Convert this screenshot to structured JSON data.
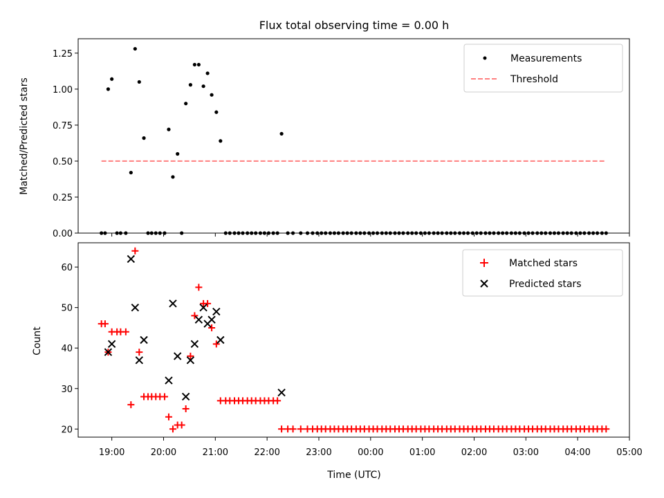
{
  "chart_data": [
    {
      "type": "scatter",
      "title": "Flux total observing time = 0.00 h",
      "xlabel": "",
      "ylabel": "Matched/Predicted stars",
      "xlim_hours": [
        18.35,
        29.0
      ],
      "ylim": [
        0,
        1.35
      ],
      "yticks": [
        0.0,
        0.25,
        0.5,
        0.75,
        1.0,
        1.25
      ],
      "ytick_labels": [
        "0.00",
        "0.25",
        "0.50",
        "0.75",
        "1.00",
        "1.25"
      ],
      "legend_position": "top-right",
      "series": [
        {
          "name": "Measurements",
          "kind": "dot",
          "color": "#000000",
          "points": [
            [
              18.8,
              0
            ],
            [
              18.87,
              0
            ],
            [
              18.93,
              1.0
            ],
            [
              19.0,
              1.07
            ],
            [
              19.1,
              0
            ],
            [
              19.17,
              0
            ],
            [
              19.27,
              0
            ],
            [
              19.37,
              0.42
            ],
            [
              19.45,
              1.28
            ],
            [
              19.53,
              1.05
            ],
            [
              19.62,
              0.66
            ],
            [
              19.7,
              0
            ],
            [
              19.77,
              0
            ],
            [
              19.85,
              0
            ],
            [
              19.93,
              0
            ],
            [
              20.02,
              0
            ],
            [
              20.1,
              0.72
            ],
            [
              20.18,
              0.39
            ],
            [
              20.27,
              0.55
            ],
            [
              20.35,
              0
            ],
            [
              20.43,
              0.9
            ],
            [
              20.52,
              1.03
            ],
            [
              20.6,
              1.17
            ],
            [
              20.68,
              1.17
            ],
            [
              20.77,
              1.02
            ],
            [
              20.85,
              1.11
            ],
            [
              20.93,
              0.96
            ],
            [
              21.02,
              0.84
            ],
            [
              21.1,
              0.64
            ],
            [
              21.2,
              0
            ],
            [
              21.28,
              0
            ],
            [
              21.37,
              0
            ],
            [
              21.45,
              0
            ],
            [
              21.53,
              0
            ],
            [
              21.62,
              0
            ],
            [
              21.7,
              0
            ],
            [
              21.78,
              0
            ],
            [
              21.87,
              0
            ],
            [
              21.95,
              0
            ],
            [
              22.03,
              0
            ],
            [
              22.12,
              0
            ],
            [
              22.2,
              0
            ],
            [
              22.28,
              0.69
            ],
            [
              22.4,
              0
            ],
            [
              22.5,
              0
            ],
            [
              22.65,
              0
            ],
            [
              22.78,
              0
            ],
            [
              22.88,
              0
            ],
            [
              22.97,
              0
            ],
            [
              23.05,
              0
            ],
            [
              23.13,
              0
            ],
            [
              23.22,
              0
            ],
            [
              23.3,
              0
            ],
            [
              23.38,
              0
            ],
            [
              23.47,
              0
            ],
            [
              23.55,
              0
            ],
            [
              23.63,
              0
            ],
            [
              23.72,
              0
            ],
            [
              23.8,
              0
            ],
            [
              23.88,
              0
            ],
            [
              23.97,
              0
            ],
            [
              24.05,
              0
            ],
            [
              24.13,
              0
            ],
            [
              24.22,
              0
            ],
            [
              24.3,
              0
            ],
            [
              24.38,
              0
            ],
            [
              24.47,
              0
            ],
            [
              24.55,
              0
            ],
            [
              24.63,
              0
            ],
            [
              24.72,
              0
            ],
            [
              24.8,
              0
            ],
            [
              24.88,
              0
            ],
            [
              24.97,
              0
            ],
            [
              25.05,
              0
            ],
            [
              25.13,
              0
            ],
            [
              25.22,
              0
            ],
            [
              25.3,
              0
            ],
            [
              25.38,
              0
            ],
            [
              25.47,
              0
            ],
            [
              25.55,
              0
            ],
            [
              25.63,
              0
            ],
            [
              25.72,
              0
            ],
            [
              25.8,
              0
            ],
            [
              25.88,
              0
            ],
            [
              25.97,
              0
            ],
            [
              26.05,
              0
            ],
            [
              26.13,
              0
            ],
            [
              26.22,
              0
            ],
            [
              26.3,
              0
            ],
            [
              26.38,
              0
            ],
            [
              26.47,
              0
            ],
            [
              26.55,
              0
            ],
            [
              26.63,
              0
            ],
            [
              26.72,
              0
            ],
            [
              26.8,
              0
            ],
            [
              26.88,
              0
            ],
            [
              26.97,
              0
            ],
            [
              27.05,
              0
            ],
            [
              27.13,
              0
            ],
            [
              27.22,
              0
            ],
            [
              27.3,
              0
            ],
            [
              27.38,
              0
            ],
            [
              27.47,
              0
            ],
            [
              27.55,
              0
            ],
            [
              27.63,
              0
            ],
            [
              27.72,
              0
            ],
            [
              27.8,
              0
            ],
            [
              27.88,
              0
            ],
            [
              27.97,
              0
            ],
            [
              28.05,
              0
            ],
            [
              28.13,
              0
            ],
            [
              28.22,
              0
            ],
            [
              28.3,
              0
            ],
            [
              28.38,
              0
            ],
            [
              28.47,
              0
            ],
            [
              28.55,
              0
            ]
          ]
        },
        {
          "name": "Threshold",
          "kind": "dashed-line",
          "color": "#ff7f7f",
          "points": [
            [
              18.8,
              0.5
            ],
            [
              28.55,
              0.5
            ]
          ]
        }
      ]
    },
    {
      "type": "scatter",
      "title": "",
      "xlabel": "Time (UTC)",
      "ylabel": "Count",
      "xlim_hours": [
        18.35,
        29.0
      ],
      "ylim": [
        18,
        66
      ],
      "yticks": [
        20,
        30,
        40,
        50,
        60
      ],
      "ytick_labels": [
        "20",
        "30",
        "40",
        "50",
        "60"
      ],
      "xticks_hours": [
        19,
        20,
        21,
        22,
        23,
        24,
        25,
        26,
        27,
        28,
        29
      ],
      "xtick_labels": [
        "19:00",
        "20:00",
        "21:00",
        "22:00",
        "23:00",
        "00:00",
        "01:00",
        "02:00",
        "03:00",
        "04:00",
        "05:00"
      ],
      "legend_position": "top-right",
      "series": [
        {
          "name": "Matched stars",
          "kind": "plus",
          "color": "#ff0000",
          "points": [
            [
              18.8,
              46
            ],
            [
              18.87,
              46
            ],
            [
              18.93,
              39
            ],
            [
              19.0,
              44
            ],
            [
              19.1,
              44
            ],
            [
              19.17,
              44
            ],
            [
              19.27,
              44
            ],
            [
              19.37,
              26
            ],
            [
              19.45,
              64
            ],
            [
              19.53,
              39
            ],
            [
              19.62,
              28
            ],
            [
              19.7,
              28
            ],
            [
              19.77,
              28
            ],
            [
              19.85,
              28
            ],
            [
              19.93,
              28
            ],
            [
              20.02,
              28
            ],
            [
              20.1,
              23
            ],
            [
              20.18,
              20
            ],
            [
              20.27,
              21
            ],
            [
              20.35,
              21
            ],
            [
              20.43,
              25
            ],
            [
              20.52,
              38
            ],
            [
              20.6,
              48
            ],
            [
              20.68,
              55
            ],
            [
              20.77,
              51
            ],
            [
              20.85,
              51
            ],
            [
              20.93,
              45
            ],
            [
              21.02,
              41
            ],
            [
              21.1,
              27
            ],
            [
              21.2,
              27
            ],
            [
              21.28,
              27
            ],
            [
              21.37,
              27
            ],
            [
              21.45,
              27
            ],
            [
              21.53,
              27
            ],
            [
              21.62,
              27
            ],
            [
              21.7,
              27
            ],
            [
              21.78,
              27
            ],
            [
              21.87,
              27
            ],
            [
              21.95,
              27
            ],
            [
              22.03,
              27
            ],
            [
              22.12,
              27
            ],
            [
              22.2,
              27
            ],
            [
              22.28,
              20
            ],
            [
              22.4,
              20
            ],
            [
              22.5,
              20
            ],
            [
              22.65,
              20
            ],
            [
              22.78,
              20
            ],
            [
              22.88,
              20
            ],
            [
              22.97,
              20
            ],
            [
              23.05,
              20
            ],
            [
              23.13,
              20
            ],
            [
              23.22,
              20
            ],
            [
              23.3,
              20
            ],
            [
              23.38,
              20
            ],
            [
              23.47,
              20
            ],
            [
              23.55,
              20
            ],
            [
              23.63,
              20
            ],
            [
              23.72,
              20
            ],
            [
              23.8,
              20
            ],
            [
              23.88,
              20
            ],
            [
              23.97,
              20
            ],
            [
              24.05,
              20
            ],
            [
              24.13,
              20
            ],
            [
              24.22,
              20
            ],
            [
              24.3,
              20
            ],
            [
              24.38,
              20
            ],
            [
              24.47,
              20
            ],
            [
              24.55,
              20
            ],
            [
              24.63,
              20
            ],
            [
              24.72,
              20
            ],
            [
              24.8,
              20
            ],
            [
              24.88,
              20
            ],
            [
              24.97,
              20
            ],
            [
              25.05,
              20
            ],
            [
              25.13,
              20
            ],
            [
              25.22,
              20
            ],
            [
              25.3,
              20
            ],
            [
              25.38,
              20
            ],
            [
              25.47,
              20
            ],
            [
              25.55,
              20
            ],
            [
              25.63,
              20
            ],
            [
              25.72,
              20
            ],
            [
              25.8,
              20
            ],
            [
              25.88,
              20
            ],
            [
              25.97,
              20
            ],
            [
              26.05,
              20
            ],
            [
              26.13,
              20
            ],
            [
              26.22,
              20
            ],
            [
              26.3,
              20
            ],
            [
              26.38,
              20
            ],
            [
              26.47,
              20
            ],
            [
              26.55,
              20
            ],
            [
              26.63,
              20
            ],
            [
              26.72,
              20
            ],
            [
              26.8,
              20
            ],
            [
              26.88,
              20
            ],
            [
              26.97,
              20
            ],
            [
              27.05,
              20
            ],
            [
              27.13,
              20
            ],
            [
              27.22,
              20
            ],
            [
              27.3,
              20
            ],
            [
              27.38,
              20
            ],
            [
              27.47,
              20
            ],
            [
              27.55,
              20
            ],
            [
              27.63,
              20
            ],
            [
              27.72,
              20
            ],
            [
              27.8,
              20
            ],
            [
              27.88,
              20
            ],
            [
              27.97,
              20
            ],
            [
              28.05,
              20
            ],
            [
              28.13,
              20
            ],
            [
              28.22,
              20
            ],
            [
              28.3,
              20
            ],
            [
              28.38,
              20
            ],
            [
              28.47,
              20
            ],
            [
              28.55,
              20
            ]
          ]
        },
        {
          "name": "Predicted stars",
          "kind": "x",
          "color": "#000000",
          "points": [
            [
              18.93,
              39
            ],
            [
              19.0,
              41
            ],
            [
              19.37,
              62
            ],
            [
              19.45,
              50
            ],
            [
              19.53,
              37
            ],
            [
              19.62,
              42
            ],
            [
              20.1,
              32
            ],
            [
              20.18,
              51
            ],
            [
              20.27,
              38
            ],
            [
              20.43,
              28
            ],
            [
              20.52,
              37
            ],
            [
              20.6,
              41
            ],
            [
              20.68,
              47
            ],
            [
              20.77,
              50
            ],
            [
              20.85,
              46
            ],
            [
              20.93,
              47
            ],
            [
              21.02,
              49
            ],
            [
              21.1,
              42
            ],
            [
              22.28,
              29
            ]
          ]
        }
      ]
    }
  ]
}
